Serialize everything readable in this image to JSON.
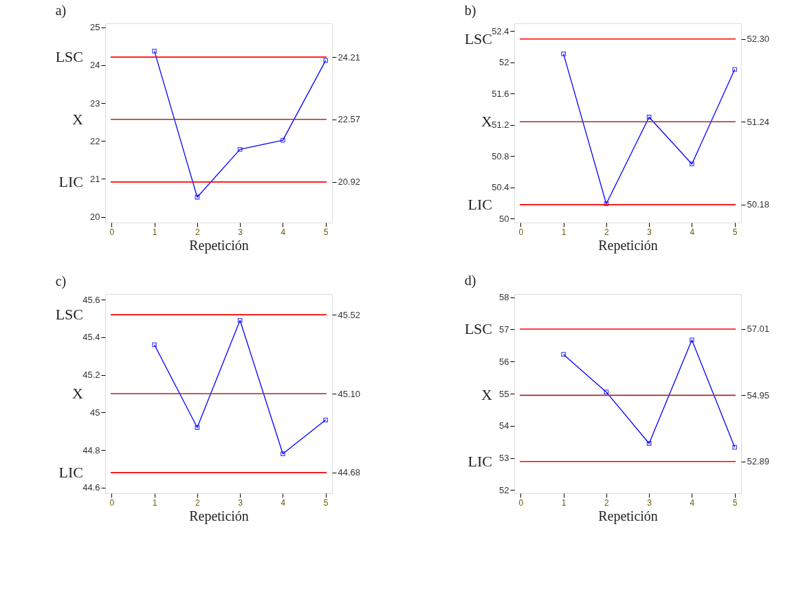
{
  "chart_data": [
    {
      "type": "line",
      "title": "a)",
      "xlabel": "Repetición",
      "x": [
        1,
        2,
        3,
        4,
        5
      ],
      "marker": "square",
      "grid": false,
      "series": [
        {
          "color": "#0000ff",
          "values": [
            24.37,
            20.52,
            21.78,
            22.02,
            24.12
          ]
        }
      ],
      "xlim": [
        -0.15,
        5.15
      ],
      "xticks": [
        0,
        1,
        2,
        3,
        4,
        5
      ],
      "ylim": [
        19.85,
        25.1
      ],
      "yticks": [
        20,
        21,
        22,
        23,
        24,
        25
      ],
      "y2lim": [
        19.85,
        25.1
      ],
      "y2ticks": [
        20.92,
        22.57,
        24.21
      ],
      "ref_lines": [
        {
          "axis": "y",
          "value": 24.21,
          "label": "LSC",
          "color": "#ff0000"
        },
        {
          "axis": "y",
          "value": 22.57,
          "label": "X",
          "color": "#a52a2a"
        },
        {
          "axis": "y",
          "value": 20.92,
          "label": "LIC",
          "color": "#ff0000"
        }
      ]
    },
    {
      "type": "line",
      "title": "b)",
      "xlabel": "Repetición",
      "x": [
        1,
        2,
        3,
        4,
        5
      ],
      "marker": "square",
      "grid": false,
      "series": [
        {
          "color": "#0000ff",
          "values": [
            52.11,
            50.19,
            51.3,
            50.7,
            51.91
          ]
        }
      ],
      "xlim": [
        -0.15,
        5.15
      ],
      "xticks": [
        0,
        1,
        2,
        3,
        4,
        5
      ],
      "ylim": [
        49.95,
        52.5
      ],
      "yticks": [
        50,
        50.4,
        50.8,
        51.2,
        51.6,
        52,
        52.4
      ],
      "y2lim": [
        49.95,
        52.5
      ],
      "y2ticks": [
        50.18,
        51.24,
        {
          "value": 52.3,
          "label": "52.30"
        }
      ],
      "ref_lines": [
        {
          "axis": "y",
          "value": 52.3,
          "label": "LSC",
          "color": "#ff0000"
        },
        {
          "axis": "y",
          "value": 51.24,
          "label": "X",
          "color": "#a52a2a"
        },
        {
          "axis": "y",
          "value": 50.18,
          "label": "LIC",
          "color": "#ff0000"
        }
      ]
    },
    {
      "type": "line",
      "title": "c)",
      "xlabel": "Repetición",
      "x": [
        1,
        2,
        3,
        4,
        5
      ],
      "marker": "square",
      "grid": false,
      "series": [
        {
          "color": "#0000ff",
          "values": [
            45.36,
            44.92,
            45.49,
            44.78,
            44.96
          ]
        }
      ],
      "xlim": [
        -0.15,
        5.15
      ],
      "xticks": [
        0,
        1,
        2,
        3,
        4,
        5
      ],
      "ylim": [
        44.57,
        45.63
      ],
      "yticks": [
        44.6,
        44.8,
        45,
        45.2,
        45.4,
        45.6
      ],
      "y2lim": [
        44.57,
        45.63
      ],
      "y2ticks": [
        44.68,
        {
          "value": 45.1,
          "label": "45.10"
        },
        45.52
      ],
      "ref_lines": [
        {
          "axis": "y",
          "value": 45.52,
          "label": "LSC",
          "color": "#ff0000"
        },
        {
          "axis": "y",
          "value": 45.1,
          "label": "X",
          "color": "#a52a2a"
        },
        {
          "axis": "y",
          "value": 44.68,
          "label": "LIC",
          "color": "#ff0000"
        }
      ]
    },
    {
      "type": "line",
      "title": "d)",
      "xlabel": "Repetición",
      "x": [
        1,
        2,
        3,
        4,
        5
      ],
      "marker": "square",
      "grid": false,
      "series": [
        {
          "color": "#0000ff",
          "values": [
            56.22,
            55.05,
            53.45,
            56.67,
            53.33
          ]
        }
      ],
      "xlim": [
        -0.15,
        5.15
      ],
      "xticks": [
        0,
        1,
        2,
        3,
        4,
        5
      ],
      "ylim": [
        51.9,
        58.1
      ],
      "yticks": [
        52,
        53,
        54,
        55,
        56,
        57,
        58
      ],
      "y2lim": [
        51.9,
        58.1
      ],
      "y2ticks": [
        52.89,
        54.95,
        57.01
      ],
      "ref_lines": [
        {
          "axis": "y",
          "value": 57.01,
          "label": "LSC",
          "color": "#ff0000"
        },
        {
          "axis": "y",
          "value": 54.95,
          "label": "X",
          "color": "#a52a2a"
        },
        {
          "axis": "y",
          "value": 52.89,
          "label": "LIC",
          "color": "#ff0000"
        }
      ]
    }
  ]
}
